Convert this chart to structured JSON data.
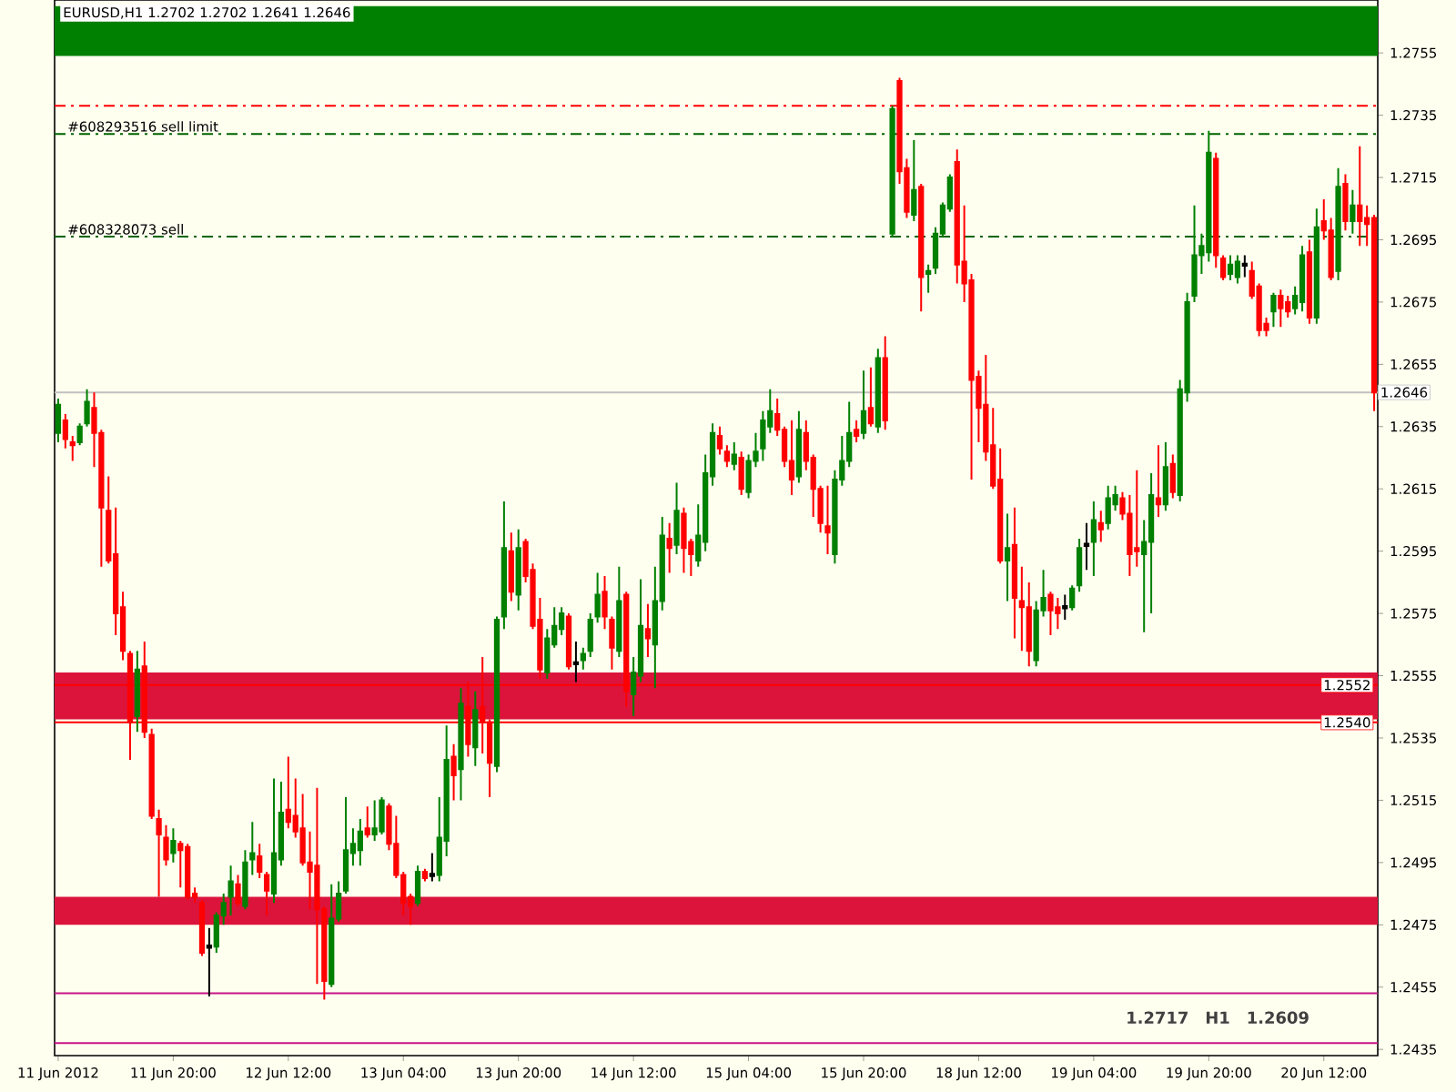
{
  "chart_data": {
    "type": "candlestick",
    "title": "EURUSD,H1 1.2702 1.2702 1.2641 1.2646",
    "categories": [
      "11 Jun 2012",
      null,
      null,
      null,
      null,
      null,
      null,
      null,
      null,
      null,
      null,
      null,
      null,
      null,
      null,
      null,
      "11 Jun 20:00",
      null,
      null,
      null,
      null,
      null,
      null,
      null,
      null,
      null,
      null,
      null,
      null,
      null,
      null,
      null,
      "12 Jun 12:00",
      null,
      null,
      null,
      null,
      null,
      null,
      null,
      null,
      null,
      null,
      null,
      null,
      null,
      null,
      null,
      "13 Jun 04:00",
      null,
      null,
      null,
      null,
      null,
      null,
      null,
      null,
      null,
      null,
      null,
      null,
      null,
      null,
      null,
      "13 Jun 20:00",
      null,
      null,
      null,
      null,
      null,
      null,
      null,
      null,
      null,
      null,
      null,
      null,
      null,
      null,
      null,
      "14 Jun 12:00",
      null,
      null,
      null,
      null,
      null,
      null,
      null,
      null,
      null,
      null,
      null,
      null,
      null,
      null,
      null,
      "15 Jun 04:00",
      null,
      null,
      null,
      null,
      null,
      null,
      null,
      null,
      null,
      null,
      null,
      null,
      null,
      null,
      null,
      "15 Jun 20:00",
      null,
      null,
      null,
      null,
      null,
      null,
      null,
      null,
      null,
      null,
      null,
      null,
      null,
      null,
      null,
      "18 Jun 12:00",
      null,
      null,
      null,
      null,
      null,
      null,
      null,
      null,
      null,
      null,
      null,
      null,
      null,
      null,
      null,
      "19 Jun 04:00",
      null,
      null,
      null,
      null,
      null,
      null,
      null,
      null,
      null,
      null,
      null,
      null,
      null,
      null,
      null,
      "19 Jun 20:00",
      null,
      null,
      null,
      null,
      null,
      null,
      null,
      null,
      null,
      null,
      null,
      null,
      null,
      null,
      null,
      "20 Jun 12:00",
      null,
      null,
      null,
      null,
      null,
      null,
      null
    ],
    "ohlc": [
      [
        1.2633,
        1.2644,
        1.263,
        1.2642
      ],
      [
        1.2637,
        1.2639,
        1.2628,
        1.2631
      ],
      [
        1.263,
        1.2632,
        1.2624,
        1.2629
      ],
      [
        1.263,
        1.2636,
        1.2629,
        1.2635
      ],
      [
        1.2636,
        1.2647,
        1.2635,
        1.2643
      ],
      [
        1.2641,
        1.2646,
        1.2622,
        1.2633
      ],
      [
        1.2633,
        1.2634,
        1.259,
        1.2609
      ],
      [
        1.2608,
        1.2619,
        1.2591,
        1.2592
      ],
      [
        1.2594,
        1.2609,
        1.2568,
        1.2575
      ],
      [
        1.2577,
        1.2582,
        1.256,
        1.2563
      ],
      [
        1.2562,
        1.2563,
        1.2528,
        1.254
      ],
      [
        1.2542,
        1.2563,
        1.2537,
        1.2557
      ],
      [
        1.2558,
        1.2566,
        1.2535,
        1.2537
      ],
      [
        1.2536,
        1.2538,
        1.2509,
        1.251
      ],
      [
        1.2509,
        1.2512,
        1.2484,
        1.2504
      ],
      [
        1.2503,
        1.2507,
        1.2494,
        1.2496
      ],
      [
        1.2498,
        1.2506,
        1.2495,
        1.2502
      ],
      [
        1.2501,
        1.2502,
        1.2487,
        1.2499
      ],
      [
        1.25,
        1.2501,
        1.2483,
        1.2484
      ],
      [
        1.2485,
        1.2487,
        1.2482,
        1.2484
      ],
      [
        1.2482,
        1.2483,
        1.2465,
        1.2466
      ],
      [
        1.2468,
        1.2474,
        1.2452,
        1.2468
      ],
      [
        1.2468,
        1.2479,
        1.2466,
        1.2478
      ],
      [
        1.2478,
        1.2485,
        1.2475,
        1.2482
      ],
      [
        1.2484,
        1.2494,
        1.2478,
        1.2489
      ],
      [
        1.2488,
        1.2491,
        1.2481,
        1.2482
      ],
      [
        1.2481,
        1.2499,
        1.248,
        1.2495
      ],
      [
        1.2496,
        1.2508,
        1.2491,
        1.2498
      ],
      [
        1.2497,
        1.2501,
        1.249,
        1.2492
      ],
      [
        1.2491,
        1.2492,
        1.2478,
        1.2486
      ],
      [
        1.2485,
        1.2522,
        1.2482,
        1.2498
      ],
      [
        1.2496,
        1.2521,
        1.2494,
        1.2511
      ],
      [
        1.2512,
        1.2529,
        1.2506,
        1.2508
      ],
      [
        1.251,
        1.2522,
        1.2503,
        1.2505
      ],
      [
        1.2506,
        1.2517,
        1.2494,
        1.2495
      ],
      [
        1.2495,
        1.2505,
        1.248,
        1.2492
      ],
      [
        1.2494,
        1.2519,
        1.2456,
        1.248
      ],
      [
        1.248,
        1.2481,
        1.2451,
        1.2457
      ],
      [
        1.2456,
        1.2488,
        1.2455,
        1.2477
      ],
      [
        1.2477,
        1.2489,
        1.2476,
        1.2485
      ],
      [
        1.2486,
        1.2516,
        1.2485,
        1.2499
      ],
      [
        1.2498,
        1.2506,
        1.2494,
        1.2501
      ],
      [
        1.2499,
        1.2509,
        1.2494,
        1.2505
      ],
      [
        1.2506,
        1.2513,
        1.2503,
        1.2504
      ],
      [
        1.2504,
        1.2515,
        1.2502,
        1.2506
      ],
      [
        1.2505,
        1.2516,
        1.2504,
        1.2515
      ],
      [
        1.2513,
        1.2514,
        1.2499,
        1.2501
      ],
      [
        1.2501,
        1.251,
        1.249,
        1.2491
      ],
      [
        1.2491,
        1.2492,
        1.2478,
        1.2482
      ],
      [
        1.2484,
        1.2485,
        1.2475,
        1.2481
      ],
      [
        1.2482,
        1.2494,
        1.2481,
        1.2492
      ],
      [
        1.2492,
        1.2493,
        1.2489,
        1.249
      ],
      [
        1.2491,
        1.2498,
        1.2489,
        1.2491
      ],
      [
        1.2491,
        1.2516,
        1.2489,
        1.2503
      ],
      [
        1.2502,
        1.2539,
        1.2497,
        1.2528
      ],
      [
        1.2529,
        1.2533,
        1.2515,
        1.2523
      ],
      [
        1.2525,
        1.2551,
        1.2515,
        1.2546
      ],
      [
        1.2545,
        1.2553,
        1.2529,
        1.2533
      ],
      [
        1.2532,
        1.255,
        1.2526,
        1.2544
      ],
      [
        1.2545,
        1.2561,
        1.253,
        1.254
      ],
      [
        1.254,
        1.2541,
        1.2516,
        1.2527
      ],
      [
        1.2526,
        1.2574,
        1.2524,
        1.2573
      ],
      [
        1.2574,
        1.2611,
        1.257,
        1.2596
      ],
      [
        1.2595,
        1.2601,
        1.2579,
        1.2582
      ],
      [
        1.2581,
        1.2602,
        1.2576,
        1.2596
      ],
      [
        1.2598,
        1.2599,
        1.2585,
        1.2587
      ],
      [
        1.2589,
        1.2591,
        1.257,
        1.2571
      ],
      [
        1.2573,
        1.258,
        1.2554,
        1.2557
      ],
      [
        1.2556,
        1.257,
        1.2554,
        1.2567
      ],
      [
        1.2565,
        1.2577,
        1.2564,
        1.2571
      ],
      [
        1.257,
        1.2577,
        1.2568,
        1.2575
      ],
      [
        1.2574,
        1.2575,
        1.2557,
        1.2558
      ],
      [
        1.2559,
        1.2566,
        1.2553,
        1.2559
      ],
      [
        1.256,
        1.2564,
        1.2557,
        1.2562
      ],
      [
        1.2563,
        1.2575,
        1.2561,
        1.2573
      ],
      [
        1.2574,
        1.2588,
        1.2572,
        1.2581
      ],
      [
        1.2582,
        1.2587,
        1.257,
        1.2574
      ],
      [
        1.2573,
        1.2574,
        1.2557,
        1.2564
      ],
      [
        1.2563,
        1.259,
        1.2561,
        1.2579
      ],
      [
        1.2581,
        1.2582,
        1.2545,
        1.255
      ],
      [
        1.2549,
        1.2561,
        1.2542,
        1.2556
      ],
      [
        1.2555,
        1.2586,
        1.2553,
        1.2571
      ],
      [
        1.257,
        1.2578,
        1.2561,
        1.2567
      ],
      [
        1.2565,
        1.259,
        1.2551,
        1.2579
      ],
      [
        1.2579,
        1.2606,
        1.2576,
        1.26
      ],
      [
        1.2599,
        1.2604,
        1.2588,
        1.2596
      ],
      [
        1.2597,
        1.2617,
        1.2594,
        1.2608
      ],
      [
        1.2607,
        1.2609,
        1.2588,
        1.2596
      ],
      [
        1.2598,
        1.2599,
        1.2587,
        1.2594
      ],
      [
        1.2592,
        1.261,
        1.259,
        1.26
      ],
      [
        1.2598,
        1.2626,
        1.2595,
        1.262
      ],
      [
        1.2619,
        1.2636,
        1.2616,
        1.2633
      ],
      [
        1.2632,
        1.2635,
        1.2626,
        1.2628
      ],
      [
        1.2627,
        1.2629,
        1.2622,
        1.2624
      ],
      [
        1.2623,
        1.263,
        1.2621,
        1.2626
      ],
      [
        1.2625,
        1.2627,
        1.2613,
        1.2615
      ],
      [
        1.2614,
        1.2626,
        1.2612,
        1.2624
      ],
      [
        1.2624,
        1.2633,
        1.2622,
        1.2627
      ],
      [
        1.2628,
        1.264,
        1.2624,
        1.2637
      ],
      [
        1.2635,
        1.2647,
        1.2633,
        1.264
      ],
      [
        1.2639,
        1.2644,
        1.2632,
        1.2634
      ],
      [
        1.2634,
        1.2635,
        1.2622,
        1.2624
      ],
      [
        1.2624,
        1.2637,
        1.2613,
        1.2618
      ],
      [
        1.2619,
        1.264,
        1.2617,
        1.2634
      ],
      [
        1.2633,
        1.2637,
        1.2621,
        1.2624
      ],
      [
        1.2625,
        1.2626,
        1.2606,
        1.2615
      ],
      [
        1.2615,
        1.2616,
        1.2601,
        1.2604
      ],
      [
        1.2603,
        1.2616,
        1.2594,
        1.2601
      ],
      [
        1.2594,
        1.2621,
        1.2591,
        1.2618
      ],
      [
        1.2618,
        1.2632,
        1.2616,
        1.2624
      ],
      [
        1.2624,
        1.2643,
        1.2622,
        1.2633
      ],
      [
        1.2634,
        1.2637,
        1.263,
        1.2632
      ],
      [
        1.2633,
        1.2653,
        1.2631,
        1.264
      ],
      [
        1.2641,
        1.2654,
        1.2635,
        1.2636
      ],
      [
        1.2635,
        1.266,
        1.2633,
        1.2657
      ],
      [
        1.2657,
        1.2664,
        1.2634,
        1.2637
      ],
      [
        1.2697,
        1.2738,
        1.2696,
        1.2737
      ],
      [
        1.2746,
        1.2747,
        1.2713,
        1.2717
      ],
      [
        1.2718,
        1.2721,
        1.2702,
        1.2704
      ],
      [
        1.2703,
        1.2727,
        1.2701,
        1.2711
      ],
      [
        1.2712,
        1.2713,
        1.2672,
        1.2683
      ],
      [
        1.2684,
        1.2687,
        1.2678,
        1.2685
      ],
      [
        1.2686,
        1.2699,
        1.2684,
        1.2697
      ],
      [
        1.2697,
        1.2707,
        1.2696,
        1.2706
      ],
      [
        1.2705,
        1.2716,
        1.2704,
        1.2715
      ],
      [
        1.272,
        1.2724,
        1.2681,
        1.2687
      ],
      [
        1.2688,
        1.2706,
        1.2675,
        1.2681
      ],
      [
        1.2682,
        1.2684,
        1.2618,
        1.265
      ],
      [
        1.2651,
        1.2653,
        1.263,
        1.2641
      ],
      [
        1.2642,
        1.2658,
        1.2624,
        1.2627
      ],
      [
        1.2629,
        1.2641,
        1.2615,
        1.2616
      ],
      [
        1.2618,
        1.2628,
        1.2591,
        1.2592
      ],
      [
        1.2592,
        1.2607,
        1.2579,
        1.2596
      ],
      [
        1.2597,
        1.2609,
        1.2567,
        1.258
      ],
      [
        1.2579,
        1.259,
        1.2563,
        1.2577
      ],
      [
        1.2577,
        1.2585,
        1.2558,
        1.2563
      ],
      [
        1.256,
        1.2579,
        1.2558,
        1.2576
      ],
      [
        1.2576,
        1.2589,
        1.2574,
        1.258
      ],
      [
        1.2581,
        1.2582,
        1.2568,
        1.2576
      ],
      [
        1.2577,
        1.258,
        1.257,
        1.2575
      ],
      [
        1.2577,
        1.2581,
        1.2573,
        1.2577
      ],
      [
        1.2577,
        1.2584,
        1.2576,
        1.2583
      ],
      [
        1.2584,
        1.2599,
        1.2582,
        1.2596
      ],
      [
        1.2597,
        1.2604,
        1.2589,
        1.2597
      ],
      [
        1.2598,
        1.2611,
        1.2587,
        1.2605
      ],
      [
        1.2604,
        1.2608,
        1.2598,
        1.2602
      ],
      [
        1.2604,
        1.2616,
        1.2602,
        1.2612
      ],
      [
        1.261,
        1.2616,
        1.2608,
        1.2613
      ],
      [
        1.2612,
        1.2614,
        1.2605,
        1.2607
      ],
      [
        1.2607,
        1.2613,
        1.2587,
        1.2594
      ],
      [
        1.2596,
        1.2621,
        1.259,
        1.2595
      ],
      [
        1.2594,
        1.2605,
        1.2569,
        1.2598
      ],
      [
        1.2598,
        1.262,
        1.2575,
        1.2613
      ],
      [
        1.2612,
        1.2629,
        1.2606,
        1.261
      ],
      [
        1.261,
        1.263,
        1.2608,
        1.2622
      ],
      [
        1.2623,
        1.2626,
        1.2612,
        1.2614
      ],
      [
        1.2613,
        1.265,
        1.2611,
        1.2647
      ],
      [
        1.2646,
        1.2678,
        1.2643,
        1.2675
      ],
      [
        1.2677,
        1.2706,
        1.2675,
        1.269
      ],
      [
        1.269,
        1.2697,
        1.2684,
        1.2693
      ],
      [
        1.2691,
        1.273,
        1.2688,
        1.2723
      ],
      [
        1.2721,
        1.2723,
        1.2686,
        1.269
      ],
      [
        1.2689,
        1.269,
        1.2682,
        1.2683
      ],
      [
        1.2684,
        1.269,
        1.2682,
        1.2687
      ],
      [
        1.2683,
        1.269,
        1.2681,
        1.2688
      ],
      [
        1.2687,
        1.269,
        1.2683,
        1.2687
      ],
      [
        1.2685,
        1.2688,
        1.2676,
        1.2677
      ],
      [
        1.268,
        1.2681,
        1.2664,
        1.2666
      ],
      [
        1.2668,
        1.267,
        1.2664,
        1.2666
      ],
      [
        1.2672,
        1.2678,
        1.2667,
        1.2677
      ],
      [
        1.2677,
        1.2679,
        1.2667,
        1.2673
      ],
      [
        1.2675,
        1.2677,
        1.267,
        1.2672
      ],
      [
        1.2673,
        1.268,
        1.2671,
        1.2677
      ],
      [
        1.2675,
        1.2693,
        1.2672,
        1.269
      ],
      [
        1.2691,
        1.2695,
        1.2668,
        1.267
      ],
      [
        1.267,
        1.2705,
        1.2668,
        1.2699
      ],
      [
        1.2701,
        1.2708,
        1.2695,
        1.2698
      ],
      [
        1.2698,
        1.2702,
        1.2682,
        1.2683
      ],
      [
        1.2685,
        1.2718,
        1.2682,
        1.2712
      ],
      [
        1.2713,
        1.2716,
        1.2698,
        1.2701
      ],
      [
        1.2701,
        1.2711,
        1.2697,
        1.2706
      ],
      [
        1.2706,
        1.2725,
        1.2693,
        1.2701
      ],
      [
        1.2702,
        1.2706,
        1.2693,
        1.27
      ],
      [
        1.2702,
        1.2703,
        1.264,
        1.2646
      ]
    ],
    "colors": [
      "#008000",
      "#ff0000",
      "#ff0000",
      "#008000",
      "#008000",
      "#ff0000",
      "#ff0000",
      "#ff0000",
      "#ff0000",
      "#ff0000",
      "#ff0000",
      "#008000",
      "#ff0000",
      "#ff0000",
      "#ff0000",
      "#ff0000",
      "#008000",
      "#ff0000",
      "#ff0000",
      "#ff0000",
      "#ff0000",
      "#000000",
      "#008000",
      "#008000",
      "#008000",
      "#ff0000",
      "#008000",
      "#008000",
      "#ff0000",
      "#ff0000",
      "#008000",
      "#008000",
      "#ff0000",
      "#ff0000",
      "#ff0000",
      "#ff0000",
      "#ff0000",
      "#ff0000",
      "#008000",
      "#008000",
      "#008000",
      "#008000",
      "#008000",
      "#ff0000",
      "#008000",
      "#008000",
      "#ff0000",
      "#ff0000",
      "#ff0000",
      "#ff0000",
      "#008000",
      "#ff0000",
      "#000000",
      "#008000",
      "#008000",
      "#ff0000",
      "#008000",
      "#ff0000",
      "#008000",
      "#ff0000",
      "#ff0000",
      "#008000",
      "#008000",
      "#ff0000",
      "#008000",
      "#ff0000",
      "#ff0000",
      "#ff0000",
      "#008000",
      "#008000",
      "#008000",
      "#ff0000",
      "#000000",
      "#008000",
      "#008000",
      "#008000",
      "#ff0000",
      "#ff0000",
      "#008000",
      "#ff0000",
      "#008000",
      "#008000",
      "#ff0000",
      "#008000",
      "#008000",
      "#ff0000",
      "#008000",
      "#ff0000",
      "#ff0000",
      "#008000",
      "#008000",
      "#008000",
      "#ff0000",
      "#ff0000",
      "#008000",
      "#ff0000",
      "#008000",
      "#008000",
      "#008000",
      "#008000",
      "#ff0000",
      "#ff0000",
      "#ff0000",
      "#008000",
      "#ff0000",
      "#ff0000",
      "#ff0000",
      "#ff0000",
      "#008000",
      "#008000",
      "#008000",
      "#ff0000",
      "#008000",
      "#ff0000",
      "#008000",
      "#ff0000",
      "#008000",
      "#ff0000",
      "#ff0000",
      "#008000",
      "#ff0000",
      "#008000",
      "#008000",
      "#008000",
      "#008000",
      "#ff0000",
      "#ff0000",
      "#ff0000",
      "#ff0000",
      "#ff0000",
      "#ff0000",
      "#ff0000",
      "#008000",
      "#ff0000",
      "#ff0000",
      "#ff0000",
      "#008000",
      "#008000",
      "#ff0000",
      "#ff0000",
      "#000000",
      "#008000",
      "#008000",
      "#000000",
      "#008000",
      "#ff0000",
      "#008000",
      "#008000",
      "#ff0000",
      "#ff0000",
      "#ff0000",
      "#008000",
      "#008000",
      "#ff0000",
      "#008000",
      "#ff0000",
      "#008000",
      "#008000",
      "#008000",
      "#008000",
      "#008000",
      "#ff0000",
      "#ff0000",
      "#008000",
      "#008000",
      "#000000",
      "#ff0000",
      "#ff0000",
      "#ff0000",
      "#008000",
      "#ff0000",
      "#ff0000",
      "#008000",
      "#008000",
      "#ff0000",
      "#008000",
      "#ff0000",
      "#ff0000",
      "#008000",
      "#ff0000",
      "#008000",
      "#ff0000",
      "#ff0000",
      "#ff0000"
    ],
    "ylim": [
      1.2433,
      1.2772
    ],
    "yticks": [
      1.2435,
      1.2455,
      1.2475,
      1.2495,
      1.2515,
      1.2535,
      1.2555,
      1.2575,
      1.2595,
      1.2615,
      1.2635,
      1.2655,
      1.2675,
      1.2695,
      1.2715,
      1.2735,
      1.2755
    ],
    "bands": [
      {
        "axis": "y",
        "from": 1.2754,
        "to": 1.277,
        "color": "#008000"
      },
      {
        "axis": "y",
        "from": 1.2541,
        "to": 1.2556,
        "color": "#dc143c"
      },
      {
        "axis": "y",
        "from": 1.2475,
        "to": 1.2484,
        "color": "#dc143c"
      }
    ],
    "ref_lines": [
      {
        "axis": "y",
        "value": 1.2738,
        "color": "#ff0000",
        "line_style": "dashed"
      },
      {
        "axis": "y",
        "value": 1.2729,
        "label": "#608293516 sell limit",
        "color": "#006400",
        "line_style": "dashed"
      },
      {
        "axis": "y",
        "value": 1.2696,
        "label": "#608328073 sell",
        "color": "#006400",
        "line_style": "dashed"
      },
      {
        "axis": "y",
        "value": 1.2646,
        "label": "1.2646",
        "color": "#c0c0c0",
        "line_style": "solid"
      },
      {
        "axis": "y",
        "value": 1.2552,
        "label": "1.2552",
        "color": "#ff0000",
        "line_style": "solid"
      },
      {
        "axis": "y",
        "value": 1.254,
        "label": "1.2540",
        "color": "#ff0000",
        "line_style": "solid"
      },
      {
        "axis": "y",
        "value": 1.2453,
        "color": "#c71585",
        "line_style": "solid"
      },
      {
        "axis": "y",
        "value": 1.2437,
        "color": "#c71585",
        "line_style": "solid"
      }
    ],
    "annotations": [
      "1.2717",
      "H1",
      "1.2609"
    ]
  }
}
